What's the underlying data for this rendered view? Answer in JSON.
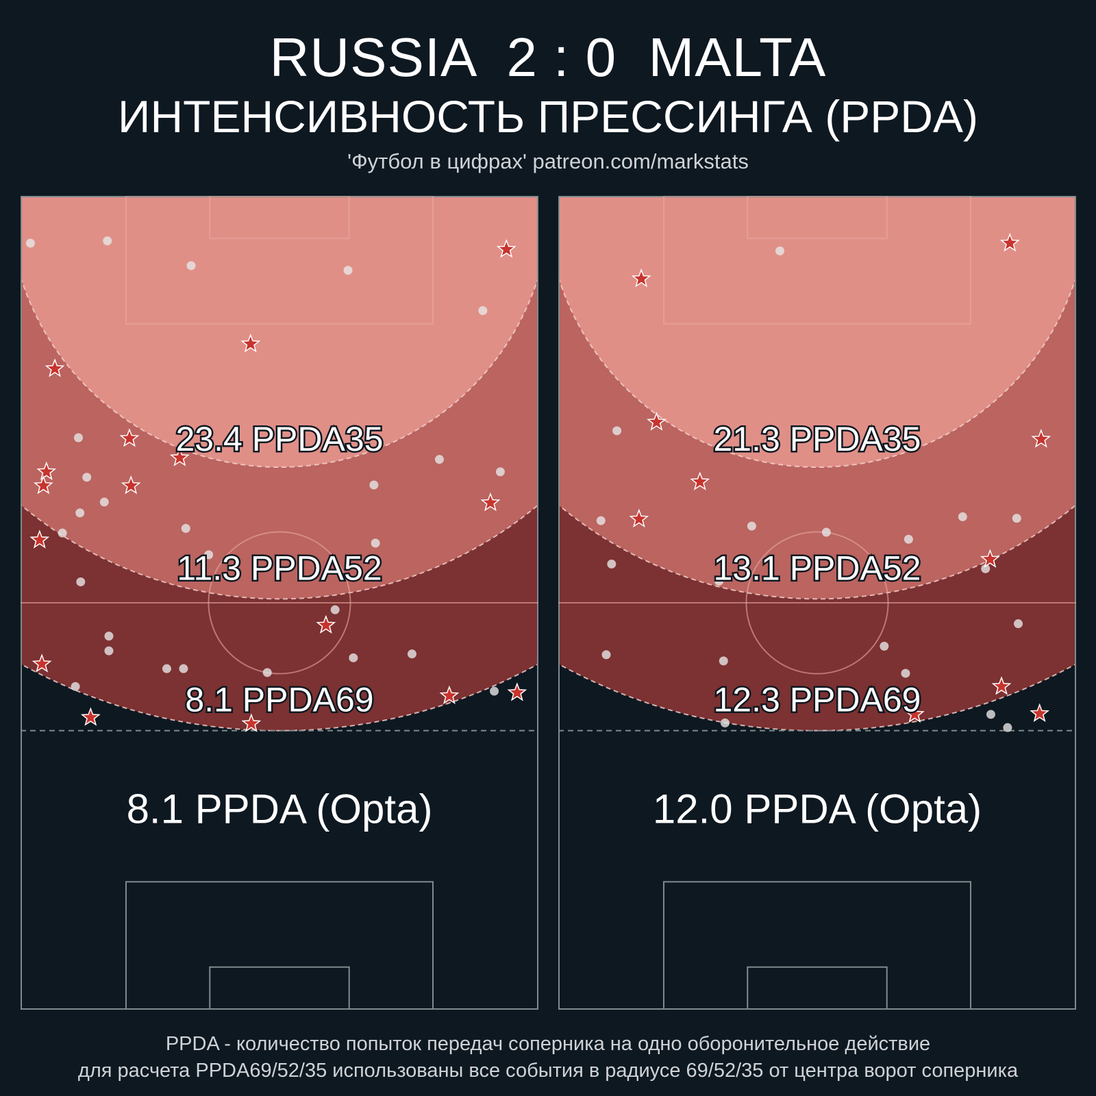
{
  "header": {
    "title": "RUSSIA  2 : 0  MALTA",
    "subtitle": "ИНТЕНСИВНОСТЬ ПРЕССИНГА (PPDA)",
    "credit": "'Футбол в цифрах' patreon.com/markstats"
  },
  "footer": {
    "line1": "PPDA - количество попыток передач соперника на одно оборонительное действие",
    "line2": "для расчета PPDA69/52/35 использованы все события в радиусе 69/52/35 от центра ворот соперника"
  },
  "colors": {
    "background": "#0e1821",
    "zone35": "#e08f87",
    "zone52": "#bb6460",
    "zone69": "#7c3132",
    "star": "#c8342e",
    "dot": "#e6e6e6",
    "pitch_line_light": "#e8a8a0",
    "pitch_line_dark": "#7f8b8d"
  },
  "chart_data": [
    {
      "type": "scatter",
      "team": "RUSSIA",
      "zone_labels": [
        "23.4 PPDA35",
        "11.3 PPDA52",
        "8.1 PPDA69"
      ],
      "opta_label": "8.1 PPDA (Opta)",
      "ppda": {
        "ppda35": 23.4,
        "ppda52": 11.3,
        "ppda69": 8.1,
        "opta": 8.1
      },
      "radii": [
        35,
        52,
        69
      ],
      "x_range": [
        0,
        68
      ],
      "y_range": [
        0,
        105
      ],
      "dots": [
        [
          1.3,
          6.1
        ],
        [
          11.4,
          5.8
        ],
        [
          22.4,
          9.0
        ],
        [
          43.0,
          9.6
        ],
        [
          60.7,
          14.8
        ],
        [
          7.6,
          31.2
        ],
        [
          8.7,
          36.3
        ],
        [
          7.8,
          40.9
        ],
        [
          11.0,
          39.5
        ],
        [
          55.0,
          34.0
        ],
        [
          46.4,
          37.3
        ],
        [
          63.0,
          35.6
        ],
        [
          5.5,
          43.5
        ],
        [
          21.7,
          42.9
        ],
        [
          24.7,
          46.3
        ],
        [
          46.6,
          44.8
        ],
        [
          7.9,
          49.8
        ],
        [
          41.3,
          53.4
        ],
        [
          11.6,
          56.8
        ],
        [
          11.6,
          58.7
        ],
        [
          19.2,
          61.0
        ],
        [
          21.4,
          61.0
        ],
        [
          32.4,
          61.5
        ],
        [
          43.7,
          59.6
        ],
        [
          51.4,
          59.1
        ],
        [
          7.2,
          63.3
        ],
        [
          62.2,
          63.9
        ]
      ],
      "stars": [
        [
          63.8,
          6.9
        ],
        [
          30.2,
          19.1
        ],
        [
          4.5,
          22.3
        ],
        [
          14.3,
          31.3
        ],
        [
          20.9,
          33.8
        ],
        [
          3.4,
          35.6
        ],
        [
          3.0,
          37.4
        ],
        [
          14.5,
          37.4
        ],
        [
          61.7,
          39.6
        ],
        [
          2.5,
          44.4
        ],
        [
          40.1,
          55.4
        ],
        [
          2.8,
          60.4
        ],
        [
          56.3,
          64.5
        ],
        [
          65.2,
          64.1
        ],
        [
          9.2,
          67.3
        ],
        [
          30.3,
          68.1
        ]
      ]
    },
    {
      "type": "scatter",
      "team": "MALTA",
      "zone_labels": [
        "21.3 PPDA35",
        "13.1 PPDA52",
        "12.3 PPDA69"
      ],
      "opta_label": "12.0 PPDA (Opta)",
      "ppda": {
        "ppda35": 21.3,
        "ppda52": 13.1,
        "ppda69": 12.3,
        "opta": 12.0
      },
      "radii": [
        35,
        52,
        69
      ],
      "x_range": [
        0,
        68
      ],
      "y_range": [
        0,
        105
      ],
      "dots": [
        [
          29.1,
          7.1
        ],
        [
          7.7,
          30.3
        ],
        [
          5.6,
          41.9
        ],
        [
          25.4,
          42.6
        ],
        [
          35.2,
          43.4
        ],
        [
          46.0,
          44.3
        ],
        [
          53.1,
          41.4
        ],
        [
          60.2,
          41.6
        ],
        [
          7.0,
          47.5
        ],
        [
          21.1,
          49.7
        ],
        [
          56.1,
          48.1
        ],
        [
          60.4,
          55.2
        ],
        [
          6.3,
          59.2
        ],
        [
          21.7,
          60.0
        ],
        [
          42.8,
          58.1
        ],
        [
          45.6,
          61.6
        ],
        [
          21.9,
          68.0
        ],
        [
          56.8,
          66.9
        ],
        [
          59.0,
          68.6
        ]
      ],
      "stars": [
        [
          59.3,
          6.1
        ],
        [
          10.9,
          10.7
        ],
        [
          12.9,
          29.2
        ],
        [
          63.4,
          31.4
        ],
        [
          18.6,
          36.9
        ],
        [
          10.6,
          41.7
        ],
        [
          56.7,
          46.9
        ],
        [
          58.2,
          63.3
        ],
        [
          46.8,
          66.9
        ],
        [
          63.2,
          66.8
        ]
      ]
    }
  ]
}
